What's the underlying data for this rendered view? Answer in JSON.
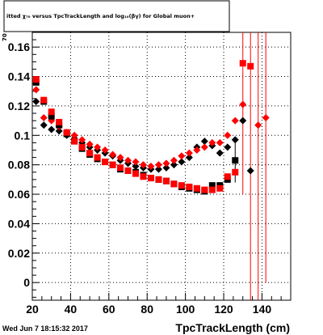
{
  "chart_data": {
    "type": "scatter",
    "title": "itted  χ₇₀ versus TpcTrackLength and log₁₀(βγ) for Global muon+",
    "title_fragment_y": "70",
    "xlabel": "TpcTrackLength (cm)",
    "ylabel": "",
    "xlim": [
      20,
      155
    ],
    "ylim": [
      -0.012,
      0.17
    ],
    "x_ticks": [
      20,
      40,
      60,
      80,
      100,
      120,
      140
    ],
    "x_tick_labels": [
      "20",
      "40",
      "60",
      "80",
      "100",
      "120",
      "140"
    ],
    "y_ticks": [
      0,
      0.02,
      0.04,
      0.06,
      0.08,
      0.1,
      0.12,
      0.14,
      0.16
    ],
    "y_tick_labels": [
      "0",
      "0.02",
      "0.04",
      "0.06",
      "0.08",
      "0.1",
      "0.12",
      "0.14",
      "0.16"
    ],
    "grid": true,
    "legend": "none",
    "series": [
      {
        "marker": "diamond",
        "color": "#000000",
        "points": [
          {
            "x": 22,
            "y": 0.123
          },
          {
            "x": 26,
            "y": 0.107
          },
          {
            "x": 30,
            "y": 0.104
          },
          {
            "x": 34,
            "y": 0.103
          },
          {
            "x": 38,
            "y": 0.1
          },
          {
            "x": 42,
            "y": 0.098
          },
          {
            "x": 46,
            "y": 0.095
          },
          {
            "x": 50,
            "y": 0.092
          },
          {
            "x": 54,
            "y": 0.09
          },
          {
            "x": 58,
            "y": 0.088
          },
          {
            "x": 62,
            "y": 0.086
          },
          {
            "x": 66,
            "y": 0.083
          },
          {
            "x": 70,
            "y": 0.081
          },
          {
            "x": 74,
            "y": 0.079
          },
          {
            "x": 78,
            "y": 0.078
          },
          {
            "x": 82,
            "y": 0.077
          },
          {
            "x": 86,
            "y": 0.077
          },
          {
            "x": 90,
            "y": 0.078
          },
          {
            "x": 94,
            "y": 0.08
          },
          {
            "x": 98,
            "y": 0.082
          },
          {
            "x": 102,
            "y": 0.085
          },
          {
            "x": 106,
            "y": 0.092
          },
          {
            "x": 110,
            "y": 0.096
          },
          {
            "x": 114,
            "y": 0.093
          },
          {
            "x": 118,
            "y": 0.088
          },
          {
            "x": 122,
            "y": 0.092
          },
          {
            "x": 126,
            "y": 0.097
          },
          {
            "x": 130,
            "y": 0.11
          },
          {
            "x": 134,
            "y": 0.076
          }
        ]
      },
      {
        "marker": "diamond",
        "color": "#ff0000",
        "points": [
          {
            "x": 22,
            "y": 0.131
          },
          {
            "x": 26,
            "y": 0.112
          },
          {
            "x": 30,
            "y": 0.11
          },
          {
            "x": 34,
            "y": 0.106
          },
          {
            "x": 38,
            "y": 0.102
          },
          {
            "x": 42,
            "y": 0.1
          },
          {
            "x": 46,
            "y": 0.097
          },
          {
            "x": 50,
            "y": 0.094
          },
          {
            "x": 54,
            "y": 0.092
          },
          {
            "x": 58,
            "y": 0.09
          },
          {
            "x": 62,
            "y": 0.087
          },
          {
            "x": 66,
            "y": 0.085
          },
          {
            "x": 70,
            "y": 0.083
          },
          {
            "x": 74,
            "y": 0.082
          },
          {
            "x": 78,
            "y": 0.08
          },
          {
            "x": 82,
            "y": 0.079
          },
          {
            "x": 86,
            "y": 0.08
          },
          {
            "x": 90,
            "y": 0.081
          },
          {
            "x": 94,
            "y": 0.083
          },
          {
            "x": 98,
            "y": 0.086
          },
          {
            "x": 102,
            "y": 0.088
          },
          {
            "x": 106,
            "y": 0.09
          },
          {
            "x": 110,
            "y": 0.092
          },
          {
            "x": 114,
            "y": 0.095
          },
          {
            "x": 118,
            "y": 0.095
          },
          {
            "x": 122,
            "y": 0.1
          },
          {
            "x": 126,
            "y": 0.11
          },
          {
            "x": 130,
            "y": 0.121
          },
          {
            "x": 138,
            "y": 0.107
          },
          {
            "x": 142,
            "y": 0.112
          }
        ]
      },
      {
        "marker": "square",
        "color": "#000000",
        "points": [
          {
            "x": 22,
            "y": 0.136
          },
          {
            "x": 26,
            "y": 0.123
          },
          {
            "x": 30,
            "y": 0.113
          },
          {
            "x": 34,
            "y": 0.107
          },
          {
            "x": 38,
            "y": 0.101
          },
          {
            "x": 42,
            "y": 0.096
          },
          {
            "x": 46,
            "y": 0.091
          },
          {
            "x": 50,
            "y": 0.087
          },
          {
            "x": 54,
            "y": 0.084
          },
          {
            "x": 58,
            "y": 0.082
          },
          {
            "x": 62,
            "y": 0.08
          },
          {
            "x": 66,
            "y": 0.077
          },
          {
            "x": 70,
            "y": 0.076
          },
          {
            "x": 74,
            "y": 0.075
          },
          {
            "x": 78,
            "y": 0.073
          },
          {
            "x": 82,
            "y": 0.071
          },
          {
            "x": 86,
            "y": 0.07
          },
          {
            "x": 90,
            "y": 0.069
          },
          {
            "x": 94,
            "y": 0.067
          },
          {
            "x": 98,
            "y": 0.065
          },
          {
            "x": 102,
            "y": 0.064
          },
          {
            "x": 106,
            "y": 0.063
          },
          {
            "x": 110,
            "y": 0.062
          },
          {
            "x": 114,
            "y": 0.066
          },
          {
            "x": 118,
            "y": 0.066
          },
          {
            "x": 122,
            "y": 0.07
          },
          {
            "x": 126,
            "y": 0.083
          }
        ]
      },
      {
        "marker": "square",
        "color": "#ff0000",
        "points": [
          {
            "x": 22,
            "y": 0.138
          },
          {
            "x": 26,
            "y": 0.124
          },
          {
            "x": 30,
            "y": 0.116
          },
          {
            "x": 34,
            "y": 0.109
          },
          {
            "x": 38,
            "y": 0.102
          },
          {
            "x": 42,
            "y": 0.096
          },
          {
            "x": 46,
            "y": 0.092
          },
          {
            "x": 50,
            "y": 0.088
          },
          {
            "x": 54,
            "y": 0.085
          },
          {
            "x": 58,
            "y": 0.082
          },
          {
            "x": 62,
            "y": 0.08
          },
          {
            "x": 66,
            "y": 0.078
          },
          {
            "x": 70,
            "y": 0.076
          },
          {
            "x": 74,
            "y": 0.074
          },
          {
            "x": 78,
            "y": 0.072
          },
          {
            "x": 82,
            "y": 0.071
          },
          {
            "x": 86,
            "y": 0.07
          },
          {
            "x": 90,
            "y": 0.069
          },
          {
            "x": 94,
            "y": 0.067
          },
          {
            "x": 98,
            "y": 0.066
          },
          {
            "x": 102,
            "y": 0.065
          },
          {
            "x": 106,
            "y": 0.064
          },
          {
            "x": 110,
            "y": 0.063
          },
          {
            "x": 114,
            "y": 0.063
          },
          {
            "x": 118,
            "y": 0.064
          },
          {
            "x": 122,
            "y": 0.072
          },
          {
            "x": 126,
            "y": 0.075
          },
          {
            "x": 130,
            "y": 0.149
          },
          {
            "x": 134,
            "y": 0.147
          }
        ]
      }
    ],
    "error_bars": [
      {
        "x": 126,
        "y_low": 0.068,
        "y_high": 0.098,
        "color": "#000000"
      },
      {
        "x": 130,
        "y_low": 0.06,
        "y_high": 0.17,
        "color": "#ff0000"
      },
      {
        "x": 134,
        "y_low": -0.012,
        "y_high": 0.17,
        "color": "#ff0000"
      },
      {
        "x": 138,
        "y_low": -0.012,
        "y_high": 0.17,
        "color": "#ff0000"
      },
      {
        "x": 142,
        "y_low": 0.0,
        "y_high": 0.17,
        "color": "#ff0000"
      }
    ]
  },
  "footer": {
    "timestamp": "Wed Jun  7 18:15:32 2017"
  }
}
